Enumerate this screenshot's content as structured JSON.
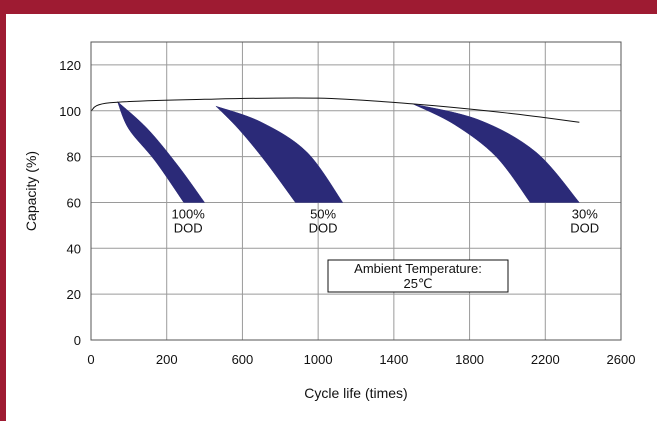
{
  "chart_data": {
    "type": "area",
    "xlabel": "Cycle life (times)",
    "ylabel": "Capacity (%)",
    "x_ticks": [
      0,
      200,
      600,
      1000,
      1400,
      1800,
      2200,
      2600
    ],
    "y_ticks": [
      0,
      20,
      40,
      60,
      80,
      100,
      120
    ],
    "ylim": [
      0,
      130
    ],
    "grid": true,
    "series": [
      {
        "label_lines": [
          "100%",
          "DOD"
        ],
        "color": "#2b2a78",
        "upper": [
          [
            70,
            104
          ],
          [
            150,
            92
          ],
          [
            260,
            76
          ],
          [
            400,
            60
          ]
        ],
        "lower": [
          [
            70,
            104
          ],
          [
            100,
            92
          ],
          [
            170,
            78
          ],
          [
            290,
            60
          ]
        ]
      },
      {
        "label_lines": [
          "50%",
          "DOD"
        ],
        "color": "#2b2a78",
        "upper": [
          [
            460,
            102
          ],
          [
            700,
            95
          ],
          [
            940,
            82
          ],
          [
            1130,
            60
          ]
        ],
        "lower": [
          [
            460,
            102
          ],
          [
            580,
            92
          ],
          [
            720,
            78
          ],
          [
            880,
            60
          ]
        ]
      },
      {
        "label_lines": [
          "30%",
          "DOD"
        ],
        "color": "#2b2a78",
        "upper": [
          [
            1500,
            103
          ],
          [
            1850,
            96
          ],
          [
            2150,
            82
          ],
          [
            2380,
            60
          ]
        ],
        "lower": [
          [
            1500,
            103
          ],
          [
            1720,
            94
          ],
          [
            1940,
            80
          ],
          [
            2120,
            60
          ]
        ]
      }
    ],
    "envelope": [
      [
        0,
        100
      ],
      [
        50,
        103.5
      ],
      [
        400,
        105
      ],
      [
        1000,
        105.5
      ],
      [
        1500,
        103
      ],
      [
        2000,
        99
      ],
      [
        2380,
        95
      ]
    ],
    "annotation_lines": [
      "Ambient Temperature:",
      "25℃"
    ]
  }
}
